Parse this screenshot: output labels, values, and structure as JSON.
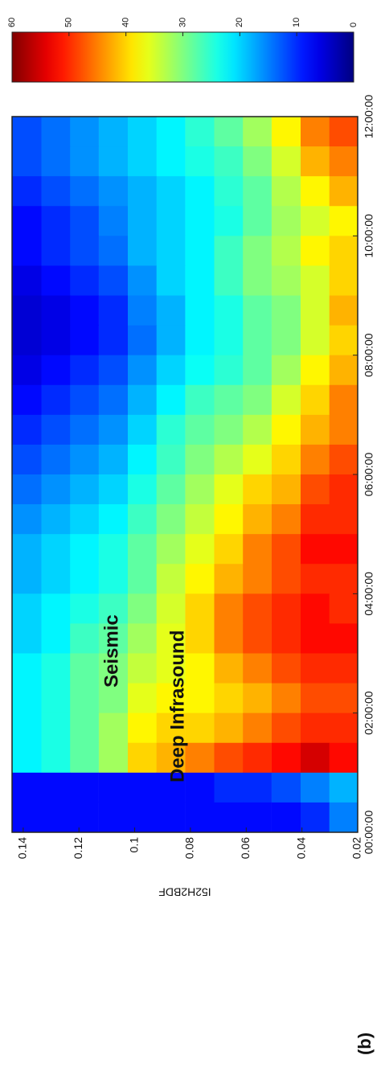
{
  "chart_data": {
    "type": "heatmap",
    "panel_label": "(b)",
    "ylabel": "I52H2BDF",
    "colormap": "jet",
    "x": [
      0.25,
      0.75,
      1.25,
      1.75,
      2.25,
      2.75,
      3.25,
      3.75,
      4.25,
      4.75,
      5.25,
      5.75,
      6.25,
      6.75,
      7.25,
      7.75,
      8.25,
      8.75,
      9.25,
      9.75,
      10.25,
      10.75,
      11.25,
      11.75
    ],
    "y": [
      0.0252,
      0.0355,
      0.0458,
      0.0562,
      0.0665,
      0.0768,
      0.0872,
      0.0975,
      0.1078,
      0.1182,
      0.1285,
      0.1388
    ],
    "z": [
      [
        15,
        18,
        52,
        50,
        48,
        50,
        52,
        50,
        50,
        52,
        50,
        50,
        48,
        45,
        45,
        42,
        40,
        42,
        40,
        40,
        38,
        42,
        45,
        48
      ],
      [
        10,
        15,
        55,
        50,
        48,
        50,
        52,
        52,
        50,
        52,
        50,
        48,
        45,
        42,
        40,
        38,
        35,
        35,
        35,
        38,
        35,
        38,
        42,
        45
      ],
      [
        8,
        12,
        52,
        48,
        45,
        48,
        50,
        50,
        48,
        48,
        45,
        42,
        40,
        38,
        35,
        32,
        30,
        30,
        32,
        33,
        32,
        33,
        35,
        38
      ],
      [
        8,
        10,
        50,
        45,
        42,
        45,
        48,
        48,
        45,
        45,
        42,
        40,
        36,
        33,
        30,
        28,
        28,
        28,
        30,
        30,
        28,
        28,
        30,
        32
      ],
      [
        8,
        10,
        48,
        42,
        40,
        42,
        45,
        45,
        42,
        40,
        38,
        36,
        33,
        30,
        28,
        25,
        24,
        24,
        26,
        26,
        24,
        25,
        26,
        28
      ],
      [
        8,
        8,
        45,
        40,
        38,
        38,
        40,
        40,
        38,
        36,
        34,
        32,
        30,
        28,
        26,
        23,
        22,
        22,
        22,
        22,
        22,
        22,
        24,
        25
      ],
      [
        8,
        8,
        42,
        40,
        38,
        36,
        36,
        35,
        34,
        32,
        30,
        28,
        26,
        25,
        22,
        20,
        18,
        18,
        20,
        20,
        20,
        20,
        22,
        22
      ],
      [
        8,
        8,
        40,
        38,
        36,
        34,
        32,
        30,
        28,
        28,
        26,
        24,
        22,
        20,
        18,
        16,
        14,
        15,
        16,
        18,
        18,
        18,
        20,
        20
      ],
      [
        8,
        8,
        32,
        32,
        30,
        30,
        28,
        26,
        24,
        24,
        22,
        20,
        18,
        16,
        14,
        12,
        10,
        10,
        12,
        14,
        15,
        16,
        18,
        18
      ],
      [
        8,
        8,
        28,
        28,
        28,
        28,
        26,
        24,
        22,
        22,
        20,
        18,
        16,
        14,
        12,
        10,
        8,
        8,
        10,
        12,
        12,
        14,
        16,
        16
      ],
      [
        8,
        8,
        24,
        24,
        24,
        24,
        22,
        22,
        20,
        20,
        18,
        16,
        14,
        12,
        10,
        8,
        6,
        6,
        8,
        10,
        10,
        12,
        14,
        14
      ],
      [
        8,
        8,
        22,
        22,
        22,
        22,
        20,
        20,
        18,
        18,
        16,
        14,
        12,
        10,
        8,
        6,
        5,
        5,
        6,
        8,
        8,
        10,
        12,
        12
      ]
    ],
    "xlim": [
      0,
      12
    ],
    "xticks": [
      {
        "value": 0,
        "label": "00:00:00"
      },
      {
        "value": 2,
        "label": "02:00:00"
      },
      {
        "value": 4,
        "label": "04:00:00"
      },
      {
        "value": 6,
        "label": "06:00:00"
      },
      {
        "value": 8,
        "label": "08:00:00"
      },
      {
        "value": 10,
        "label": "10:00:00"
      },
      {
        "value": 12,
        "label": "12:00:00"
      }
    ],
    "ylim": [
      0.02,
      0.144
    ],
    "yticks": [
      0.02,
      0.04,
      0.06,
      0.08,
      0.1,
      0.12,
      0.14
    ],
    "clim": [
      0,
      60
    ],
    "cticks": [
      0,
      10,
      20,
      30,
      40,
      50,
      60
    ],
    "annotations": [
      "Seismic",
      "Deep Infrasound"
    ]
  }
}
